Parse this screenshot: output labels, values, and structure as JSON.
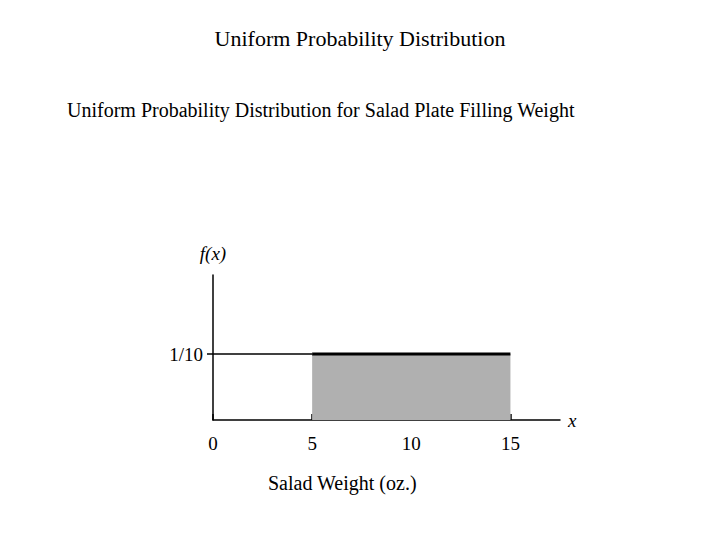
{
  "chart_data": {
    "type": "area",
    "title": "Uniform Probability Distribution",
    "subtitle": "Uniform Probability Distribution for Salad Plate Filling Weight",
    "xlabel": "Salad Weight (oz.)",
    "x_axis_name": "x",
    "ylabel": "f(x)",
    "x": [
      5,
      15
    ],
    "values": [
      0.1,
      0.1
    ],
    "color": "#b0b0b0",
    "xlim": [
      0,
      17.5
    ],
    "xticks": [
      0,
      5,
      10,
      15
    ],
    "ylim": [
      0,
      0.22
    ],
    "yticks": [
      {
        "value": 0.1,
        "label": "1/10"
      }
    ],
    "grid": false
  }
}
